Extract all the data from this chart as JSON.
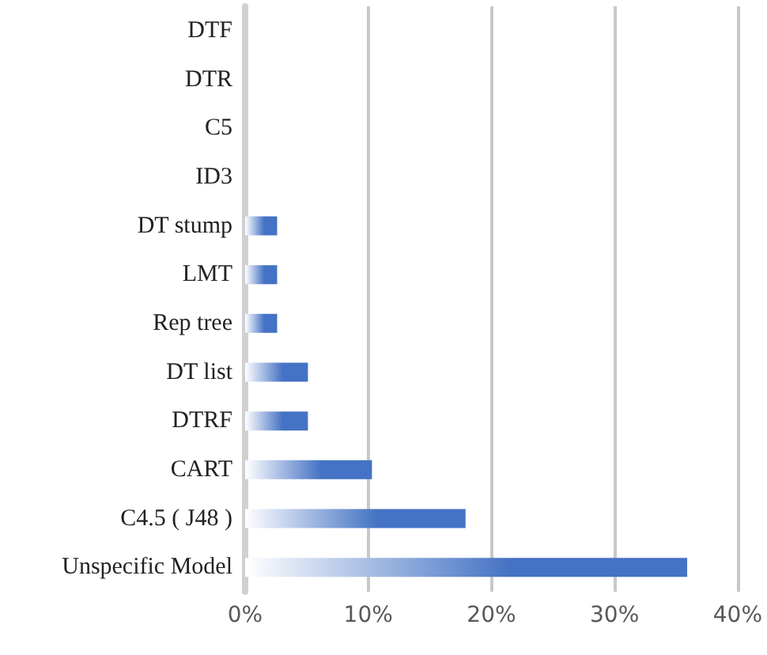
{
  "chart_data": {
    "type": "bar",
    "orientation": "horizontal",
    "categories": [
      "DTF",
      "DTR",
      "C5",
      "ID3",
      "DT stump",
      "LMT",
      "Rep tree",
      "DT list",
      "DTRF",
      "CART",
      "C4.5 ( J48 )",
      "Unspecific Model"
    ],
    "values": [
      0,
      0,
      0,
      0,
      2.6,
      2.6,
      2.6,
      5.1,
      5.1,
      10.3,
      17.9,
      35.9
    ],
    "color": "#4472c4",
    "xlim": [
      0,
      40
    ],
    "xticks": [
      {
        "value": 0,
        "label": "0%"
      },
      {
        "value": 10,
        "label": "10%"
      },
      {
        "value": 20,
        "label": "20%"
      },
      {
        "value": 30,
        "label": "30%"
      },
      {
        "value": 40,
        "label": "40%"
      }
    ],
    "grid": "x"
  }
}
